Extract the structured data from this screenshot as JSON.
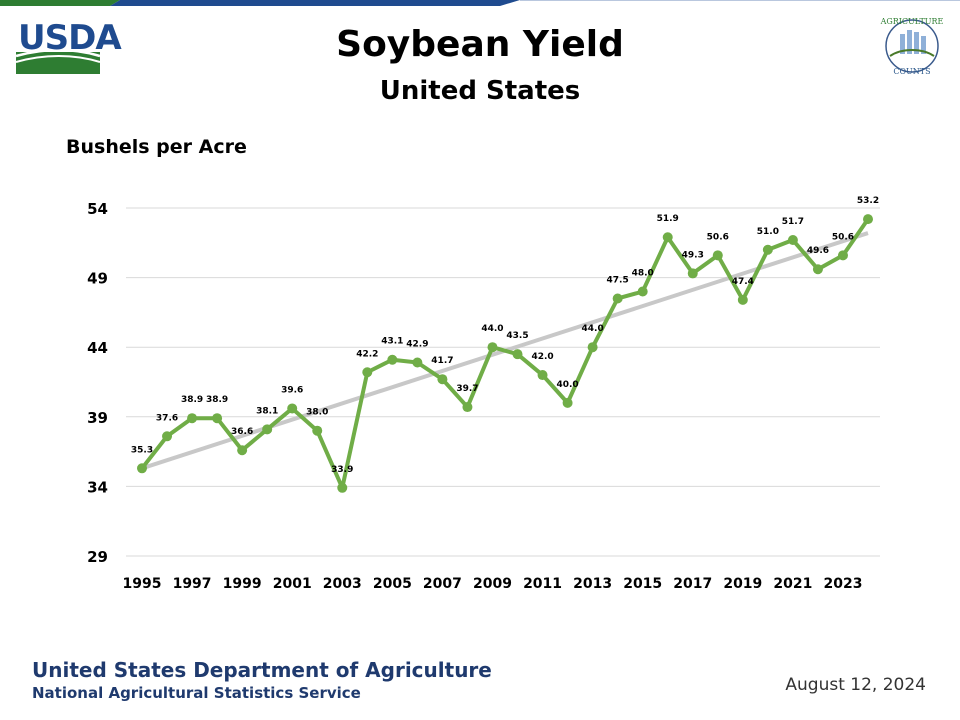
{
  "header": {
    "agency_logo": "USDA",
    "badge_logo": "AGRICULTURE COUNTS"
  },
  "colors": {
    "series": "#70ad47",
    "trend": "#c8c8c8",
    "gridline": "#d9d9d9",
    "usda_blue": "#1f4b8f",
    "usda_green": "#2e7d32"
  },
  "chart_data": {
    "type": "line",
    "title": "Soybean Yield",
    "subtitle": "United States",
    "ylabel": "Bushels per Acre",
    "xlabel": "",
    "ylim": [
      29,
      54
    ],
    "y_ticks": [
      "29",
      "34",
      "39",
      "44",
      "49",
      "54"
    ],
    "x_ticks": [
      "1995",
      "1997",
      "1999",
      "2001",
      "2003",
      "2005",
      "2007",
      "2009",
      "2011",
      "2013",
      "2015",
      "2017",
      "2019",
      "2021",
      "2023"
    ],
    "grid": "horizontal",
    "legend": "none",
    "x": [
      1995,
      1996,
      1997,
      1998,
      1999,
      2000,
      2001,
      2002,
      2003,
      2004,
      2005,
      2006,
      2007,
      2008,
      2009,
      2010,
      2011,
      2012,
      2013,
      2014,
      2015,
      2016,
      2017,
      2018,
      2019,
      2020,
      2021,
      2022,
      2023,
      2024
    ],
    "values": [
      35.3,
      37.6,
      38.9,
      38.9,
      36.6,
      38.1,
      39.6,
      38.0,
      33.9,
      42.2,
      43.1,
      42.9,
      41.7,
      39.7,
      44.0,
      43.5,
      42.0,
      40.0,
      44.0,
      47.5,
      48.0,
      51.9,
      49.3,
      50.6,
      47.4,
      51.0,
      51.7,
      49.6,
      50.6,
      53.2
    ],
    "data_labels": [
      "35.3",
      "37.6",
      "38.9",
      "38.9",
      "36.6",
      "38.1",
      "39.6",
      "38.0",
      "33.9",
      "42.2",
      "43.1",
      "42.9",
      "41.7",
      "39.7",
      "44.0",
      "43.5",
      "42.0",
      "40.0",
      "44.0",
      "47.5",
      "48.0",
      "51.9",
      "49.3",
      "50.6",
      "47.4",
      "51.0",
      "51.7",
      "49.6",
      "50.6",
      "53.2"
    ],
    "trendline": {
      "x": [
        1995,
        2024
      ],
      "y": [
        35.3,
        52.2
      ]
    }
  },
  "footer": {
    "org": "United States Department of Agriculture",
    "agency": "National Agricultural Statistics Service",
    "date": "August 12, 2024"
  }
}
